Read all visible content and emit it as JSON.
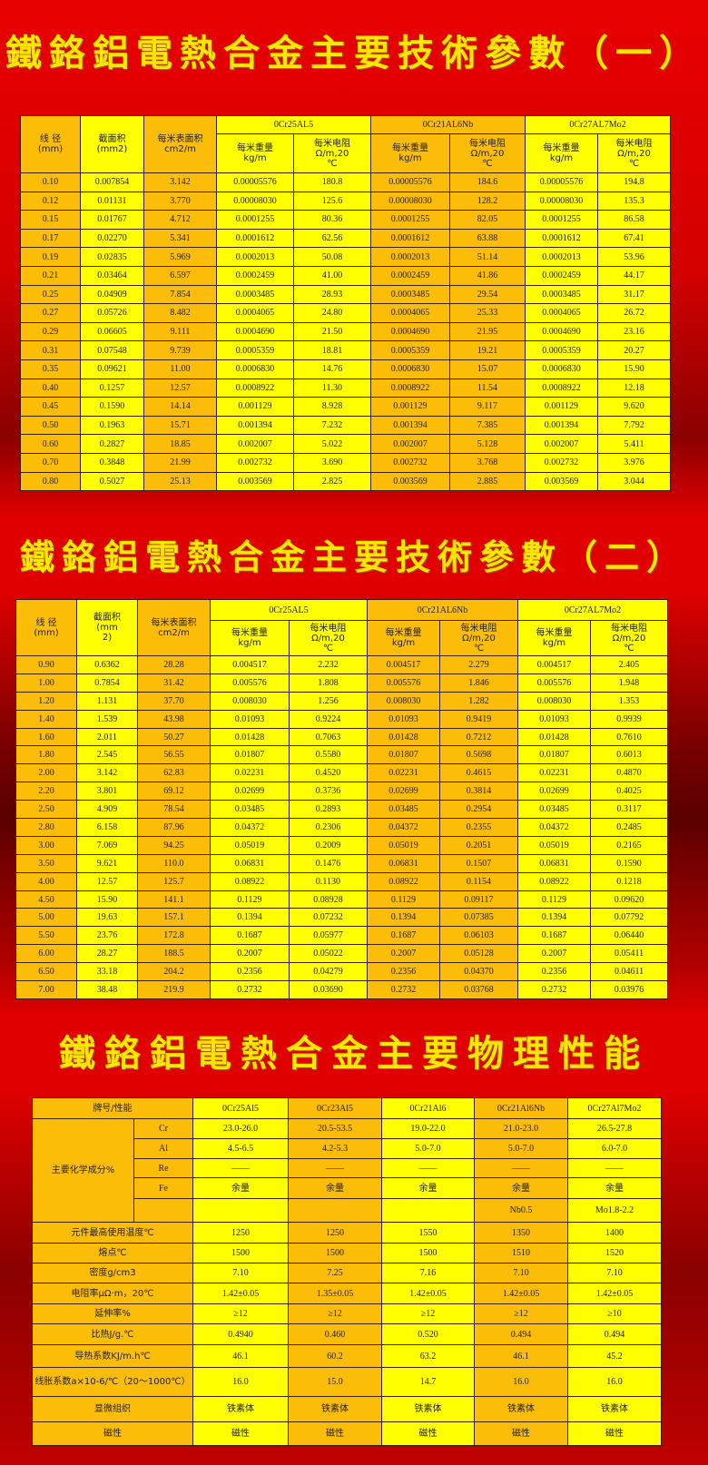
{
  "titles": {
    "t1": "鐵鉻鋁電熱合金主要技術參數（一）",
    "t2": "鐵鉻鋁電熱合金主要技術參數（二）",
    "t3": "鐵鉻鋁電熱合金主要物理性能"
  },
  "param_header": {
    "diameter": "线 径\n(mm)",
    "section_t1": "截面积\n(mm2)",
    "section_t2": "截面积\n(mm\n2)",
    "surface": "每米表面积\ncm2/m",
    "alloys": [
      "0Cr25AL5",
      "0Cr21AL6Nb",
      "0Cr27AL7Mo2"
    ],
    "weight": "每米重量\nkg/m",
    "resistance": "每米电阻\nΩ/m,20\n℃"
  },
  "table1": [
    [
      "0.10",
      "0.007854",
      "3.142",
      "0.00005576",
      "180.8",
      "0.00005576",
      "184.6",
      "0.00005576",
      "194.8"
    ],
    [
      "0.12",
      "0.01131",
      "3.770",
      "0.00008030",
      "125.6",
      "0.00008030",
      "128.2",
      "0.00008030",
      "135.3"
    ],
    [
      "0.15",
      "0.01767",
      "4.712",
      "0.0001255",
      "80.36",
      "0.0001255",
      "82.05",
      "0.0001255",
      "86.58"
    ],
    [
      "0.17",
      "0.02270",
      "5.341",
      "0.0001612",
      "62.56",
      "0.0001612",
      "63.88",
      "0.0001612",
      "67.41"
    ],
    [
      "0.19",
      "0.02835",
      "5.969",
      "0.0002013",
      "50.08",
      "0.0002013",
      "51.14",
      "0.0002013",
      "53.96"
    ],
    [
      "0.21",
      "0.03464",
      "6.597",
      "0.0002459",
      "41.00",
      "0.0002459",
      "41.86",
      "0.0002459",
      "44.17"
    ],
    [
      "0.25",
      "0.04909",
      "7.854",
      "0.0003485",
      "28.93",
      "0.0003485",
      "29.54",
      "0.0003485",
      "31.17"
    ],
    [
      "0.27",
      "0.05726",
      "8.482",
      "0.0004065",
      "24.80",
      "0.0004065",
      "25.33",
      "0.0004065",
      "26.72"
    ],
    [
      "0.29",
      "0.06605",
      "9.111",
      "0.0004690",
      "21.50",
      "0.0004690",
      "21.95",
      "0.0004690",
      "23.16"
    ],
    [
      "0.31",
      "0.07548",
      "9.739",
      "0.0005359",
      "18.81",
      "0.0005359",
      "19.21",
      "0.0005359",
      "20.27"
    ],
    [
      "0.35",
      "0.09621",
      "11.00",
      "0.0006830",
      "14.76",
      "0.0006830",
      "15.07",
      "0.0006830",
      "15.90"
    ],
    [
      "0.40",
      "0.1257",
      "12.57",
      "0.0008922",
      "11.30",
      "0.0008922",
      "11.54",
      "0.0008922",
      "12.18"
    ],
    [
      "0.45",
      "0.1590",
      "14.14",
      "0.001129",
      "8.928",
      "0.001129",
      "9.117",
      "0.001129",
      "9.620"
    ],
    [
      "0.50",
      "0.1963",
      "15.71",
      "0.001394",
      "7.232",
      "0.001394",
      "7.385",
      "0.001394",
      "7.792"
    ],
    [
      "0.60",
      "0.2827",
      "18.85",
      "0.002007",
      "5.022",
      "0.002007",
      "5.128",
      "0.002007",
      "5.411"
    ],
    [
      "0.70",
      "0.3848",
      "21.99",
      "0.002732",
      "3.690",
      "0.002732",
      "3.768",
      "0.002732",
      "3.976"
    ],
    [
      "0.80",
      "0.5027",
      "25.13",
      "0.003569",
      "2.825",
      "0.003569",
      "2.885",
      "0.003569",
      "3.044"
    ]
  ],
  "table2": [
    [
      "0.90",
      "0.6362",
      "28.28",
      "0.004517",
      "2.232",
      "0.004517",
      "2.279",
      "0.004517",
      "2.405"
    ],
    [
      "1.00",
      "0.7854",
      "31.42",
      "0.005576",
      "1.808",
      "0.005576",
      "1.846",
      "0.005576",
      "1.948"
    ],
    [
      "1.20",
      "1.131",
      "37.70",
      "0.008030",
      "1.256",
      "0.008030",
      "1.282",
      "0.008030",
      "1.353"
    ],
    [
      "1.40",
      "1.539",
      "43.98",
      "0.01093",
      "0.9224",
      "0.01093",
      "0.9419",
      "0.01093",
      "0.9939"
    ],
    [
      "1.60",
      "2.011",
      "50.27",
      "0.01428",
      "0.7063",
      "0.01428",
      "0.7212",
      "0.01428",
      "0.7610"
    ],
    [
      "1.80",
      "2.545",
      "56.55",
      "0.01807",
      "0.5580",
      "0.01807",
      "0.5698",
      "0.01807",
      "0.6013"
    ],
    [
      "2.00",
      "3.142",
      "62.83",
      "0.02231",
      "0.4520",
      "0.02231",
      "0.4615",
      "0.02231",
      "0.4870"
    ],
    [
      "2.20",
      "3.801",
      "69.12",
      "0.02699",
      "0.3736",
      "0.02699",
      "0.3814",
      "0.02699",
      "0.4025"
    ],
    [
      "2.50",
      "4.909",
      "78.54",
      "0.03485",
      "0.2893",
      "0.03485",
      "0.2954",
      "0.03485",
      "0.3117"
    ],
    [
      "2.80",
      "6.158",
      "87.96",
      "0.04372",
      "0.2306",
      "0.04372",
      "0.2355",
      "0.04372",
      "0.2485"
    ],
    [
      "3.00",
      "7.069",
      "94.25",
      "0.05019",
      "0.2009",
      "0.05019",
      "0.2051",
      "0.05019",
      "0.2165"
    ],
    [
      "3.50",
      "9.621",
      "110.0",
      "0.06831",
      "0.1476",
      "0.06831",
      "0.1507",
      "0.06831",
      "0.1590"
    ],
    [
      "4.00",
      "12.57",
      "125.7",
      "0.08922",
      "0.1130",
      "0.08922",
      "0.1154",
      "0.08922",
      "0.1218"
    ],
    [
      "4.50",
      "15.90",
      "141.1",
      "0.1129",
      "0.08928",
      "0.1129",
      "0.09117",
      "0.1129",
      "0.09620"
    ],
    [
      "5.00",
      "19.63",
      "157.1",
      "0.1394",
      "0.07232",
      "0.1394",
      "0.07385",
      "0.1394",
      "0.07792"
    ],
    [
      "5.50",
      "23.76",
      "172.8",
      "0.1687",
      "0.05977",
      "0.1687",
      "0.06103",
      "0.1687",
      "0.06440"
    ],
    [
      "6.00",
      "28.27",
      "188.5",
      "0.2007",
      "0.05022",
      "0.2007",
      "0.05128",
      "0.2007",
      "0.05411"
    ],
    [
      "6.50",
      "33.18",
      "204.2",
      "0.2356",
      "0.04279",
      "0.2356",
      "0.04370",
      "0.2356",
      "0.04611"
    ],
    [
      "7.00",
      "38.48",
      "219.9",
      "0.2732",
      "0.03690",
      "0.2732",
      "0.03768",
      "0.2732",
      "0.03976"
    ]
  ],
  "physical": {
    "header_label": "牌号/性能",
    "grades": [
      "0Cr25Al5",
      "0Cr23Al5",
      "0Cr21Al6",
      "0Cr21Al6Nb",
      "0Cr27Al7Mo2"
    ],
    "composition_label": "主要化学成分%",
    "composition": [
      {
        "element": "Cr",
        "values": [
          "23.0-26.0",
          "20.5-53.5",
          "19.0-22.0",
          "21.0-23.0",
          "26.5-27.8"
        ]
      },
      {
        "element": "Al",
        "values": [
          "4.5-6.5",
          "4.2-5.3",
          "5.0-7.0",
          "5.0-7.0",
          "6.0-7.0"
        ]
      },
      {
        "element": "Re",
        "values": [
          "——",
          "——",
          "——",
          "——",
          "——"
        ]
      },
      {
        "element": "Fe",
        "values": [
          "余量",
          "余量",
          "余量",
          "余量",
          "余量"
        ]
      },
      {
        "element": "",
        "values": [
          "",
          "",
          "",
          "Nb0.5",
          "Mo1.8-2.2"
        ]
      }
    ],
    "properties": [
      {
        "label": "元件最高使用温度℃",
        "values": [
          "1250",
          "1250",
          "1550",
          "1350",
          "1400"
        ]
      },
      {
        "label": "熔点℃",
        "values": [
          "1500",
          "1500",
          "1500",
          "1510",
          "1520"
        ]
      },
      {
        "label": "密度g/cm3",
        "values": [
          "7.10",
          "7.25",
          "7.16",
          "7.10",
          "7.10"
        ]
      },
      {
        "label": "电阻率μΩ·m，20℃",
        "values": [
          "1.42±0.05",
          "1.35±0.05",
          "1.42±0.05",
          "1.42±0.05",
          "1.42±0.05"
        ]
      },
      {
        "label": "延伸率%",
        "values": [
          "≥12",
          "≥12",
          "≥12",
          "≥12",
          "≥10"
        ]
      },
      {
        "label": "比热J/g.℃",
        "values": [
          "0.4940",
          "0.460",
          "0.520",
          "0.494",
          "0.494"
        ]
      },
      {
        "label": "导热系数KJ/m.h℃",
        "values": [
          "46.1",
          "60.2",
          "63.2",
          "46.1",
          "45.2"
        ]
      },
      {
        "label": "线胀系数a×10-6/℃（20～1000℃）",
        "values": [
          "16.0",
          "15.0",
          "14.7",
          "16.0",
          "16.0"
        ]
      },
      {
        "label": "显微组织",
        "values": [
          "铁素体",
          "铁素体",
          "铁素体",
          "铁素体",
          "铁素体"
        ]
      },
      {
        "label": "磁性",
        "values": [
          "磁性",
          "磁性",
          "磁性",
          "磁性",
          "磁性"
        ]
      }
    ]
  },
  "colors": {
    "orange": "#fbbd08",
    "yellow": "#ffff00",
    "title": "#ffe600",
    "background": "#e00000"
  }
}
